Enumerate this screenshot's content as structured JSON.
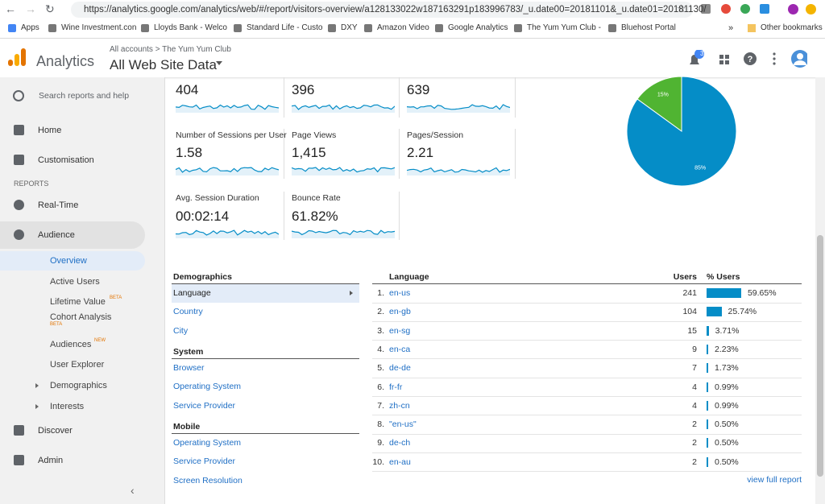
{
  "browser": {
    "url": "https://analytics.google.com/analytics/web/#/report/visitors-overview/a128133022w187163291p183996783/_u.date00=20181101&_u.date01=20181130/",
    "bookmarks": [
      "Apps",
      "Wine Investment.con",
      "Lloyds Bank - Welco",
      "Standard Life - Custo",
      "DXY",
      "Amazon Video",
      "Google Analytics",
      "The Yum Yum Club -",
      "Bluehost Portal"
    ],
    "more": "»",
    "other_bookmarks": "Other bookmarks"
  },
  "header": {
    "product": "Analytics",
    "account_path": "All accounts > The Yum Yum Club",
    "property": "All Web Site Data",
    "notification_count": "3"
  },
  "sidebar": {
    "search": "Search reports and help",
    "items": [
      {
        "label": "Home"
      },
      {
        "label": "Customisation"
      },
      {
        "section": "REPORTS"
      },
      {
        "label": "Real-Time"
      },
      {
        "label": "Audience"
      },
      {
        "label": "Overview"
      },
      {
        "label": "Active Users"
      },
      {
        "label": "Lifetime Value",
        "badge": "BETA"
      },
      {
        "label": "Cohort Analysis",
        "badge": "BETA"
      },
      {
        "label": "Audiences",
        "badge": "NEW"
      },
      {
        "label": "User Explorer"
      },
      {
        "label": "Demographics"
      },
      {
        "label": "Interests"
      },
      {
        "label": "Discover"
      },
      {
        "label": "Admin"
      }
    ]
  },
  "metrics": [
    {
      "value": "404"
    },
    {
      "value": "396"
    },
    {
      "value": "639"
    },
    {
      "label": "Number of Sessions per User",
      "value": "1.58"
    },
    {
      "label": "Page Views",
      "value": "1,415"
    },
    {
      "label": "Pages/Session",
      "value": "2.21"
    },
    {
      "label": "Avg. Session Duration",
      "value": "00:02:14"
    },
    {
      "label": "Bounce Rate",
      "value": "61.82%"
    }
  ],
  "pie": {
    "slices": [
      {
        "value": 15,
        "label": "15%",
        "color": "#50b432"
      },
      {
        "value": 85,
        "label": "85%",
        "color": "#058dc7"
      }
    ]
  },
  "dimensions": {
    "title": "Demographics",
    "items": [
      "Language",
      "Country",
      "City"
    ],
    "groups": [
      {
        "title": "System",
        "items": [
          "Browser",
          "Operating System",
          "Service Provider"
        ]
      },
      {
        "title": "Mobile",
        "items": [
          "Operating System",
          "Service Provider",
          "Screen Resolution"
        ]
      }
    ]
  },
  "table": {
    "headers": [
      "Language",
      "Users",
      "% Users"
    ],
    "bar_color": "#058dc7",
    "rows": [
      {
        "rank": "1.",
        "language": "en-us",
        "users": 241,
        "pct": 59.65,
        "pct_label": "59.65%"
      },
      {
        "rank": "2.",
        "language": "en-gb",
        "users": 104,
        "pct": 25.74,
        "pct_label": "25.74%"
      },
      {
        "rank": "3.",
        "language": "en-sg",
        "users": 15,
        "pct": 3.71,
        "pct_label": "3.71%"
      },
      {
        "rank": "4.",
        "language": "en-ca",
        "users": 9,
        "pct": 2.23,
        "pct_label": "2.23%"
      },
      {
        "rank": "5.",
        "language": "de-de",
        "users": 7,
        "pct": 1.73,
        "pct_label": "1.73%"
      },
      {
        "rank": "6.",
        "language": "fr-fr",
        "users": 4,
        "pct": 0.99,
        "pct_label": "0.99%"
      },
      {
        "rank": "7.",
        "language": "zh-cn",
        "users": 4,
        "pct": 0.99,
        "pct_label": "0.99%"
      },
      {
        "rank": "8.",
        "language": "\"en-us\"",
        "users": 2,
        "pct": 0.5,
        "pct_label": "0.50%"
      },
      {
        "rank": "9.",
        "language": "de-ch",
        "users": 2,
        "pct": 0.5,
        "pct_label": "0.50%"
      },
      {
        "rank": "10.",
        "language": "en-au",
        "users": 2,
        "pct": 0.5,
        "pct_label": "0.50%"
      }
    ],
    "view_full": "view full report"
  }
}
